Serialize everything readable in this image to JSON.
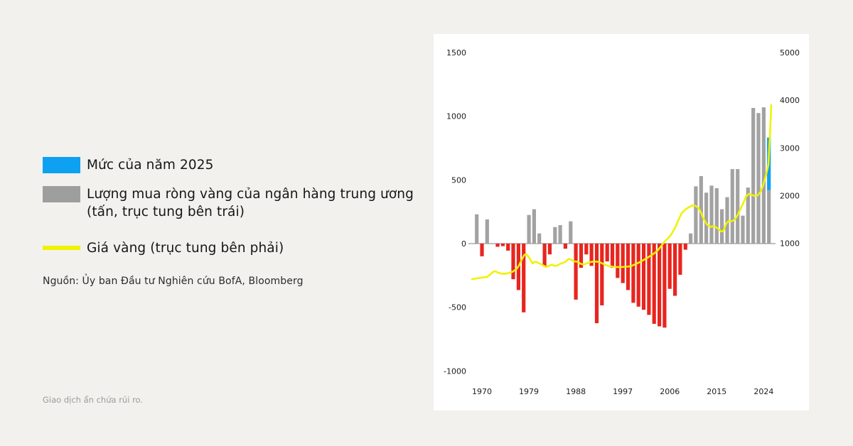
{
  "page": {
    "source": "Nguồn: Ủy ban Đầu tư Nghiên cứu BofA, Bloomberg",
    "disclaimer": "Giao dịch ẩn chứa rủi ro."
  },
  "legend": {
    "items": [
      {
        "label": "Mức của năm 2025",
        "label2": "",
        "color": "#0ea1f2"
      },
      {
        "label": "Lượng mua ròng vàng của ngân hàng trung ương",
        "label2": "(tấn, trục tung bên trái)",
        "color": "#9e9e9e"
      },
      {
        "label": "Giá vàng (trục tung bên phải)",
        "label2": "",
        "color": "#eff202"
      }
    ]
  },
  "chart_data": {
    "type": "combo",
    "description": "Central bank net gold purchases (tonnes, bars, left axis) and gold price (line, right axis), 1969-2025",
    "colors": {
      "background": "#ffffff",
      "bar_positive": "#a2a2a2",
      "bar_negative": "#e8251f",
      "level_2025": "#0ea1f2",
      "gold_line": "#f0f203",
      "zero_line": "#ababab",
      "axis_text": "#1c1c1c"
    },
    "left_axis": {
      "ticks": [
        1500,
        1000,
        500,
        0,
        -500,
        -1000
      ],
      "range": [
        -1100,
        1600
      ],
      "grid": false
    },
    "right_axis": {
      "ticks": [
        5000,
        4000,
        3000,
        2000,
        1000
      ],
      "range": [
        280,
        5100
      ],
      "grid": false
    },
    "x_axis": {
      "tick_years": [
        1970,
        1979,
        1988,
        1997,
        2006,
        2015,
        2024
      ],
      "range": [
        1968,
        2026
      ]
    },
    "bars": [
      {
        "year": 1969,
        "tonnes": 230
      },
      {
        "year": 1970,
        "tonnes": -100
      },
      {
        "year": 1971,
        "tonnes": 190
      },
      {
        "year": 1972,
        "tonnes": 0
      },
      {
        "year": 1973,
        "tonnes": -25
      },
      {
        "year": 1974,
        "tonnes": -20
      },
      {
        "year": 1975,
        "tonnes": -55
      },
      {
        "year": 1976,
        "tonnes": -280
      },
      {
        "year": 1977,
        "tonnes": -365
      },
      {
        "year": 1978,
        "tonnes": -540
      },
      {
        "year": 1979,
        "tonnes": 225
      },
      {
        "year": 1980,
        "tonnes": 270
      },
      {
        "year": 1981,
        "tonnes": 80
      },
      {
        "year": 1982,
        "tonnes": -180
      },
      {
        "year": 1983,
        "tonnes": -85
      },
      {
        "year": 1984,
        "tonnes": 130
      },
      {
        "year": 1985,
        "tonnes": 145
      },
      {
        "year": 1986,
        "tonnes": -40
      },
      {
        "year": 1987,
        "tonnes": 175
      },
      {
        "year": 1988,
        "tonnes": -440
      },
      {
        "year": 1989,
        "tonnes": -190
      },
      {
        "year": 1990,
        "tonnes": -85
      },
      {
        "year": 1991,
        "tonnes": -175
      },
      {
        "year": 1992,
        "tonnes": -625
      },
      {
        "year": 1993,
        "tonnes": -485
      },
      {
        "year": 1994,
        "tonnes": -140
      },
      {
        "year": 1995,
        "tonnes": -190
      },
      {
        "year": 1996,
        "tonnes": -270
      },
      {
        "year": 1997,
        "tonnes": -310
      },
      {
        "year": 1998,
        "tonnes": -365
      },
      {
        "year": 1999,
        "tonnes": -465
      },
      {
        "year": 2000,
        "tonnes": -495
      },
      {
        "year": 2001,
        "tonnes": -520
      },
      {
        "year": 2002,
        "tonnes": -560
      },
      {
        "year": 2003,
        "tonnes": -630
      },
      {
        "year": 2004,
        "tonnes": -650
      },
      {
        "year": 2005,
        "tonnes": -660
      },
      {
        "year": 2006,
        "tonnes": -355
      },
      {
        "year": 2007,
        "tonnes": -410
      },
      {
        "year": 2008,
        "tonnes": -245
      },
      {
        "year": 2009,
        "tonnes": -48
      },
      {
        "year": 2010,
        "tonnes": 80
      },
      {
        "year": 2011,
        "tonnes": 450
      },
      {
        "year": 2012,
        "tonnes": 530
      },
      {
        "year": 2013,
        "tonnes": 400
      },
      {
        "year": 2014,
        "tonnes": 455
      },
      {
        "year": 2015,
        "tonnes": 435
      },
      {
        "year": 2016,
        "tonnes": 270
      },
      {
        "year": 2017,
        "tonnes": 365
      },
      {
        "year": 2018,
        "tonnes": 585
      },
      {
        "year": 2019,
        "tonnes": 585
      },
      {
        "year": 2020,
        "tonnes": 220
      },
      {
        "year": 2021,
        "tonnes": 440
      },
      {
        "year": 2022,
        "tonnes": 1065
      },
      {
        "year": 2023,
        "tonnes": 1025
      },
      {
        "year": 2024,
        "tonnes": 1070
      }
    ],
    "level_2025": {
      "year": 2025,
      "actual_tonnes": 420,
      "projected_total_tonnes": 833
    },
    "gold_price_line": {
      "axis": "right",
      "points": [
        [
          1968.1,
          248
        ],
        [
          1969,
          262
        ],
        [
          1970,
          278
        ],
        [
          1971,
          295
        ],
        [
          1971.5,
          337
        ],
        [
          1972.2,
          404
        ],
        [
          1972.6,
          412
        ],
        [
          1973.1,
          382
        ],
        [
          1973.8,
          360
        ],
        [
          1974.5,
          360
        ],
        [
          1975.2,
          375
        ],
        [
          1975.9,
          404
        ],
        [
          1976.6,
          456
        ],
        [
          1977.1,
          531
        ],
        [
          1977.6,
          650
        ],
        [
          1978.1,
          754
        ],
        [
          1978.5,
          770
        ],
        [
          1978.9,
          725
        ],
        [
          1979.3,
          650
        ],
        [
          1979.7,
          576
        ],
        [
          1980.1,
          613
        ],
        [
          1980.6,
          598
        ],
        [
          1981.2,
          568
        ],
        [
          1981.7,
          538
        ],
        [
          1982.3,
          501
        ],
        [
          1982.8,
          523
        ],
        [
          1983.4,
          553
        ],
        [
          1983.9,
          523
        ],
        [
          1984.5,
          538
        ],
        [
          1985,
          568
        ],
        [
          1985.6,
          590
        ],
        [
          1986.1,
          620
        ],
        [
          1986.6,
          672
        ],
        [
          1987.2,
          650
        ],
        [
          1987.7,
          620
        ],
        [
          1988.3,
          613
        ],
        [
          1988.8,
          576
        ],
        [
          1989.4,
          553
        ],
        [
          1989.9,
          568
        ],
        [
          1990.6,
          601
        ],
        [
          1991.3,
          616
        ],
        [
          1992,
          616
        ],
        [
          1992.6,
          601
        ],
        [
          1993.3,
          565
        ],
        [
          1994,
          531
        ],
        [
          1994.7,
          516
        ],
        [
          1995.4,
          501
        ],
        [
          1996.7,
          501
        ],
        [
          1998.1,
          511
        ],
        [
          1998.8,
          531
        ],
        [
          1999.5,
          565
        ],
        [
          2000.2,
          601
        ],
        [
          2000.8,
          640
        ],
        [
          2001.5,
          680
        ],
        [
          2002.2,
          729
        ],
        [
          2002.9,
          780
        ],
        [
          2003.6,
          839
        ],
        [
          2004.2,
          918
        ],
        [
          2004.9,
          1022
        ],
        [
          2005.6,
          1097
        ],
        [
          2006.3,
          1186
        ],
        [
          2007,
          1320
        ],
        [
          2007.7,
          1499
        ],
        [
          2008.3,
          1633
        ],
        [
          2009,
          1708
        ],
        [
          2009.7,
          1760
        ],
        [
          2010.4,
          1793
        ],
        [
          2010.8,
          1790
        ],
        [
          2011.4,
          1752
        ],
        [
          2011.9,
          1663
        ],
        [
          2012.4,
          1533
        ],
        [
          2013.1,
          1395
        ],
        [
          2013.8,
          1346
        ],
        [
          2014.5,
          1361
        ],
        [
          2015.2,
          1310
        ],
        [
          2015.9,
          1246
        ],
        [
          2016.3,
          1261
        ],
        [
          2016.8,
          1410
        ],
        [
          2017.3,
          1469
        ],
        [
          2017.9,
          1462
        ],
        [
          2018.4,
          1492
        ],
        [
          2019,
          1589
        ],
        [
          2019.5,
          1708
        ],
        [
          2020.1,
          1842
        ],
        [
          2020.6,
          1976
        ],
        [
          2021.2,
          2036
        ],
        [
          2021.7,
          2013
        ],
        [
          2022.3,
          1991
        ],
        [
          2022.8,
          1998
        ],
        [
          2023.4,
          2080
        ],
        [
          2023.9,
          2214
        ],
        [
          2024.4,
          2408
        ],
        [
          2024.9,
          2647
        ],
        [
          2025.1,
          3049
        ],
        [
          2025.3,
          3500
        ],
        [
          2025.45,
          3900
        ]
      ]
    }
  }
}
